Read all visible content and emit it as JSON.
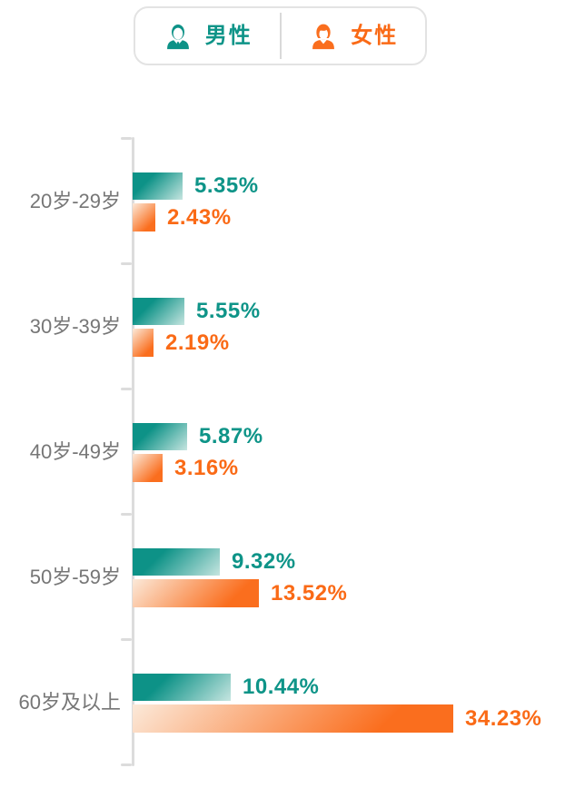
{
  "legend": {
    "male": {
      "label": "男性",
      "icon": "male-person-icon"
    },
    "female": {
      "label": "女性",
      "icon": "female-person-icon"
    }
  },
  "colors": {
    "male_solid": "#0D9287",
    "male_light": "#C6E5E0",
    "male_text": "#0E9488",
    "female_solid": "#FA6E1E",
    "female_light": "#FBE9D9",
    "female_text": "#FA6A16",
    "category_label": "#767676",
    "axis": "#DCDCDC",
    "legend_border": "#E3E3E3"
  },
  "chart_data": {
    "type": "bar",
    "orientation": "horizontal",
    "title": "",
    "xlabel": "",
    "ylabel": "",
    "categories": [
      "20岁-29岁",
      "30岁-39岁",
      "40岁-49岁",
      "50岁-59岁",
      "60岁及以上"
    ],
    "series": [
      {
        "name": "男性",
        "color": "#0D9287",
        "values": [
          5.35,
          5.55,
          5.87,
          9.32,
          10.44
        ],
        "labels": [
          "5.35%",
          "5.55%",
          "5.87%",
          "9.32%",
          "10.44%"
        ]
      },
      {
        "name": "女性",
        "color": "#FA6E1E",
        "values": [
          2.43,
          2.19,
          3.16,
          13.52,
          34.23
        ],
        "labels": [
          "2.43%",
          "2.19%",
          "3.16%",
          "13.52%",
          "34.23%"
        ]
      }
    ],
    "value_suffix": "%",
    "xlim": [
      0,
      35
    ],
    "grid": false,
    "legend_position": "top"
  }
}
